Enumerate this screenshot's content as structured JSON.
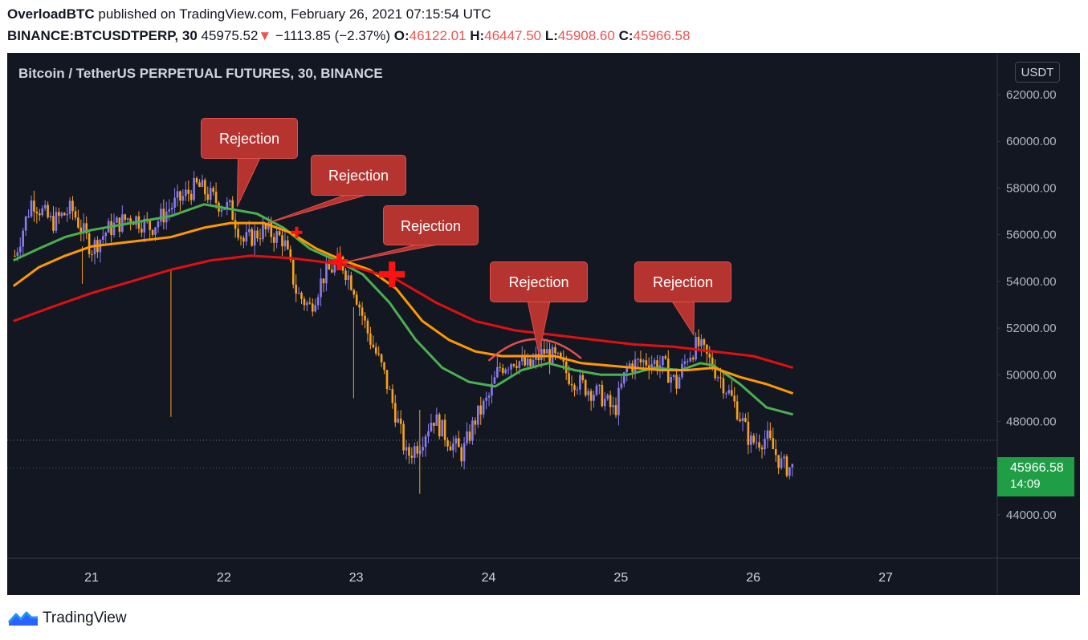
{
  "header": {
    "author": "OverloadBTC",
    "published_text": "published on TradingView.com, February 26, 2021 07:15:54 UTC",
    "symbol": "BINANCE:BTCUSDTPERP, 30",
    "last": "45975.52",
    "change_arrow": "▼",
    "change": "−1113.85 (−2.37%)",
    "o_label": "O:",
    "o_value": "46122.01",
    "h_label": "H:",
    "h_value": "46447.50",
    "l_label": "L:",
    "l_value": "45908.60",
    "c_label": "C:",
    "c_value": "45966.58"
  },
  "chart_title": "Bitcoin / TetherUS PERPETUAL FUTURES, 30, BINANCE",
  "unit_badge": "USDT",
  "price_tag": {
    "price": "45966.58",
    "countdown": "14:09"
  },
  "footer": {
    "brand": "TradingView",
    "logo_icon": "tradingview-logo-icon"
  },
  "colors": {
    "background": "#131722",
    "up": "#8a7cf0",
    "down": "#f7a21b",
    "ema_fast": "#4caf50",
    "ema_mid": "#ff9800",
    "ema_slow": "#e01010",
    "annotation": "#b5342f"
  },
  "chart_data": {
    "type": "candlestick",
    "title": "Bitcoin / TetherUS PERPETUAL FUTURES, 30, BINANCE",
    "x_ticks": [
      "21",
      "22",
      "23",
      "24",
      "25",
      "26",
      "27"
    ],
    "y_ticks": [
      "62000.00",
      "60000.00",
      "58000.00",
      "56000.00",
      "54000.00",
      "52000.00",
      "50000.00",
      "48000.00",
      "44000.00"
    ],
    "ylim": [
      42200,
      63100
    ],
    "xlim": [
      20.41,
      27.82
    ],
    "price_path": [
      [
        20.42,
        55100
      ],
      [
        20.55,
        57500
      ],
      [
        20.7,
        56500
      ],
      [
        20.85,
        57100
      ],
      [
        21.0,
        55400
      ],
      [
        21.12,
        56200
      ],
      [
        21.3,
        56800
      ],
      [
        21.45,
        56300
      ],
      [
        21.6,
        57200
      ],
      [
        21.8,
        58100
      ],
      [
        21.95,
        57400
      ],
      [
        22.05,
        57100
      ],
      [
        22.15,
        55700
      ],
      [
        22.3,
        56200
      ],
      [
        22.45,
        55800
      ],
      [
        22.55,
        53500
      ],
      [
        22.65,
        52900
      ],
      [
        22.75,
        54200
      ],
      [
        22.88,
        54900
      ],
      [
        22.98,
        53800
      ],
      [
        23.08,
        51900
      ],
      [
        23.2,
        50200
      ],
      [
        23.3,
        48300
      ],
      [
        23.38,
        46500
      ],
      [
        23.48,
        47100
      ],
      [
        23.58,
        48200
      ],
      [
        23.7,
        47200
      ],
      [
        23.8,
        46600
      ],
      [
        23.9,
        48100
      ],
      [
        24.0,
        49000
      ],
      [
        24.08,
        50300
      ],
      [
        24.2,
        50700
      ],
      [
        24.3,
        50300
      ],
      [
        24.42,
        51000
      ],
      [
        24.52,
        50600
      ],
      [
        24.6,
        50000
      ],
      [
        24.72,
        49500
      ],
      [
        24.85,
        49100
      ],
      [
        24.95,
        48400
      ],
      [
        25.05,
        50400
      ],
      [
        25.2,
        50600
      ],
      [
        25.32,
        50400
      ],
      [
        25.42,
        49600
      ],
      [
        25.5,
        50800
      ],
      [
        25.58,
        51300
      ],
      [
        25.68,
        50500
      ],
      [
        25.78,
        49600
      ],
      [
        25.88,
        48500
      ],
      [
        25.98,
        47100
      ],
      [
        26.1,
        47300
      ],
      [
        26.22,
        46100
      ],
      [
        26.3,
        46000
      ]
    ],
    "series": [
      {
        "name": "",
        "color": "#4caf50",
        "points": [
          [
            20.41,
            54900
          ],
          [
            20.6,
            55400
          ],
          [
            20.8,
            55900
          ],
          [
            21.0,
            56200
          ],
          [
            21.3,
            56500
          ],
          [
            21.6,
            56800
          ],
          [
            21.85,
            57300
          ],
          [
            22.05,
            57100
          ],
          [
            22.25,
            56900
          ],
          [
            22.45,
            56300
          ],
          [
            22.65,
            55400
          ],
          [
            22.85,
            54900
          ],
          [
            23.05,
            54300
          ],
          [
            23.25,
            53100
          ],
          [
            23.45,
            51500
          ],
          [
            23.65,
            50300
          ],
          [
            23.85,
            49700
          ],
          [
            24.05,
            49500
          ],
          [
            24.25,
            50200
          ],
          [
            24.45,
            50500
          ],
          [
            24.65,
            50200
          ],
          [
            24.85,
            50000
          ],
          [
            25.05,
            50000
          ],
          [
            25.25,
            50300
          ],
          [
            25.45,
            50200
          ],
          [
            25.6,
            50500
          ],
          [
            25.7,
            50400
          ],
          [
            25.9,
            49600
          ],
          [
            26.1,
            48600
          ],
          [
            26.3,
            48300
          ]
        ]
      },
      {
        "name": "",
        "color": "#ff9800",
        "points": [
          [
            20.41,
            53800
          ],
          [
            20.6,
            54600
          ],
          [
            20.8,
            55100
          ],
          [
            21.0,
            55500
          ],
          [
            21.3,
            55700
          ],
          [
            21.6,
            55900
          ],
          [
            21.85,
            56300
          ],
          [
            22.05,
            56500
          ],
          [
            22.3,
            56500
          ],
          [
            22.5,
            56100
          ],
          [
            22.7,
            55400
          ],
          [
            22.9,
            54900
          ],
          [
            23.1,
            54500
          ],
          [
            23.3,
            53700
          ],
          [
            23.5,
            52300
          ],
          [
            23.7,
            51500
          ],
          [
            23.9,
            51000
          ],
          [
            24.1,
            50800
          ],
          [
            24.3,
            50800
          ],
          [
            24.5,
            50800
          ],
          [
            24.7,
            50500
          ],
          [
            24.9,
            50400
          ],
          [
            25.1,
            50300
          ],
          [
            25.3,
            50200
          ],
          [
            25.5,
            50200
          ],
          [
            25.7,
            50300
          ],
          [
            25.9,
            49900
          ],
          [
            26.1,
            49600
          ],
          [
            26.3,
            49200
          ]
        ]
      },
      {
        "name": "",
        "color": "#e01010",
        "points": [
          [
            20.41,
            52300
          ],
          [
            20.7,
            52900
          ],
          [
            21.0,
            53500
          ],
          [
            21.3,
            54000
          ],
          [
            21.6,
            54500
          ],
          [
            21.9,
            54900
          ],
          [
            22.2,
            55100
          ],
          [
            22.5,
            55000
          ],
          [
            22.8,
            54800
          ],
          [
            23.0,
            54600
          ],
          [
            23.3,
            54100
          ],
          [
            23.6,
            53100
          ],
          [
            23.9,
            52300
          ],
          [
            24.2,
            51900
          ],
          [
            24.5,
            51700
          ],
          [
            24.8,
            51500
          ],
          [
            25.1,
            51300
          ],
          [
            25.4,
            51200
          ],
          [
            25.7,
            51000
          ],
          [
            26.0,
            50800
          ],
          [
            26.3,
            50300
          ]
        ]
      }
    ],
    "crosses": [
      [
        22.55,
        56100
      ],
      [
        22.87,
        54850
      ],
      [
        23.27,
        54300
      ]
    ],
    "annotations": [
      {
        "text": "Rejection",
        "tip_x": 22.1,
        "tip_y": 57200
      },
      {
        "text": "Rejection",
        "tip_x": 22.33,
        "tip_y": 56500
      },
      {
        "text": "Rejection",
        "tip_x": 22.9,
        "tip_y": 54800
      },
      {
        "text": "Rejection",
        "tip_x": 24.38,
        "tip_y": 50900
      },
      {
        "text": "Rejection",
        "tip_x": 25.55,
        "tip_y": 51700
      }
    ],
    "dotted_levels": [
      47200,
      46000
    ]
  }
}
